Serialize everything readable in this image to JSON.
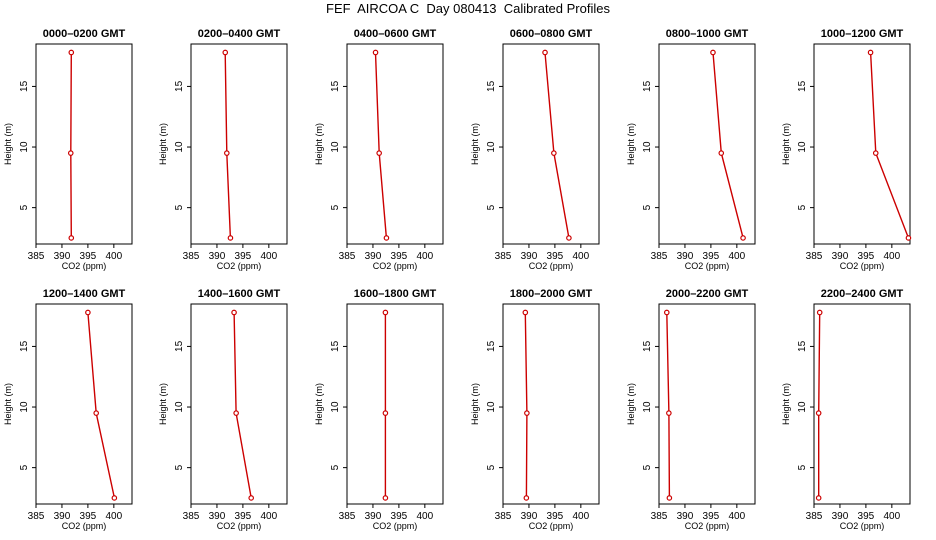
{
  "figure": {
    "title": "FEF  AIRCOA C  Day 080413  Calibrated Profiles"
  },
  "style": {
    "line_color": "#cc0000",
    "axis_color": "#000000"
  },
  "chart_data": [
    {
      "type": "line",
      "title": "0000–0200 GMT",
      "xlabel": "CO2 (ppm)",
      "ylabel": "Height (m)",
      "xlim": [
        385,
        403.5
      ],
      "ylim": [
        2,
        18.5
      ],
      "xticks": [
        385,
        390,
        395,
        400
      ],
      "yticks": [
        5,
        10,
        15
      ],
      "grid": false,
      "series": [
        {
          "x": [
            391.8,
            391.7,
            391.8
          ],
          "y": [
            2.5,
            9.5,
            17.8
          ]
        }
      ]
    },
    {
      "type": "line",
      "title": "0200–0400 GMT",
      "xlabel": "CO2 (ppm)",
      "ylabel": "Height (m)",
      "xlim": [
        385,
        403.5
      ],
      "ylim": [
        2,
        18.5
      ],
      "xticks": [
        385,
        390,
        395,
        400
      ],
      "yticks": [
        5,
        10,
        15
      ],
      "grid": false,
      "series": [
        {
          "x": [
            392.6,
            391.9,
            391.6
          ],
          "y": [
            2.5,
            9.5,
            17.8
          ]
        }
      ]
    },
    {
      "type": "line",
      "title": "0400–0600 GMT",
      "xlabel": "CO2 (ppm)",
      "ylabel": "Height (m)",
      "xlim": [
        385,
        403.5
      ],
      "ylim": [
        2,
        18.5
      ],
      "xticks": [
        385,
        390,
        395,
        400
      ],
      "yticks": [
        5,
        10,
        15
      ],
      "grid": false,
      "series": [
        {
          "x": [
            392.6,
            391.2,
            390.5
          ],
          "y": [
            2.5,
            9.5,
            17.8
          ]
        }
      ]
    },
    {
      "type": "line",
      "title": "0600–0800 GMT",
      "xlabel": "CO2 (ppm)",
      "ylabel": "Height (m)",
      "xlim": [
        385,
        403.5
      ],
      "ylim": [
        2,
        18.5
      ],
      "xticks": [
        385,
        390,
        395,
        400
      ],
      "yticks": [
        5,
        10,
        15
      ],
      "grid": false,
      "series": [
        {
          "x": [
            397.7,
            394.8,
            393.1
          ],
          "y": [
            2.5,
            9.5,
            17.8
          ]
        }
      ]
    },
    {
      "type": "line",
      "title": "0800–1000 GMT",
      "xlabel": "CO2 (ppm)",
      "ylabel": "Height (m)",
      "xlim": [
        385,
        403.5
      ],
      "ylim": [
        2,
        18.5
      ],
      "xticks": [
        385,
        390,
        395,
        400
      ],
      "yticks": [
        5,
        10,
        15
      ],
      "grid": false,
      "series": [
        {
          "x": [
            401.2,
            397.0,
            395.4
          ],
          "y": [
            2.5,
            9.5,
            17.8
          ]
        }
      ]
    },
    {
      "type": "line",
      "title": "1000–1200 GMT",
      "xlabel": "CO2 (ppm)",
      "ylabel": "Height (m)",
      "xlim": [
        385,
        403.5
      ],
      "ylim": [
        2,
        18.5
      ],
      "xticks": [
        385,
        390,
        395,
        400
      ],
      "yticks": [
        5,
        10,
        15
      ],
      "grid": false,
      "series": [
        {
          "x": [
            403.2,
            396.9,
            395.9
          ],
          "y": [
            2.5,
            9.5,
            17.8
          ]
        }
      ]
    },
    {
      "type": "line",
      "title": "1200–1400 GMT",
      "xlabel": "CO2 (ppm)",
      "ylabel": "Height (m)",
      "xlim": [
        385,
        403.5
      ],
      "ylim": [
        2,
        18.5
      ],
      "xticks": [
        385,
        390,
        395,
        400
      ],
      "yticks": [
        5,
        10,
        15
      ],
      "grid": false,
      "series": [
        {
          "x": [
            400.1,
            396.6,
            395.0
          ],
          "y": [
            2.5,
            9.5,
            17.8
          ]
        }
      ]
    },
    {
      "type": "line",
      "title": "1400–1600 GMT",
      "xlabel": "CO2 (ppm)",
      "ylabel": "Height (m)",
      "xlim": [
        385,
        403.5
      ],
      "ylim": [
        2,
        18.5
      ],
      "xticks": [
        385,
        390,
        395,
        400
      ],
      "yticks": [
        5,
        10,
        15
      ],
      "grid": false,
      "series": [
        {
          "x": [
            396.6,
            393.7,
            393.3
          ],
          "y": [
            2.5,
            9.5,
            17.8
          ]
        }
      ]
    },
    {
      "type": "line",
      "title": "1600–1800 GMT",
      "xlabel": "CO2 (ppm)",
      "ylabel": "Height (m)",
      "xlim": [
        385,
        403.5
      ],
      "ylim": [
        2,
        18.5
      ],
      "xticks": [
        385,
        390,
        395,
        400
      ],
      "yticks": [
        5,
        10,
        15
      ],
      "grid": false,
      "series": [
        {
          "x": [
            392.4,
            392.4,
            392.4
          ],
          "y": [
            2.5,
            9.5,
            17.8
          ]
        }
      ]
    },
    {
      "type": "line",
      "title": "1800–2000 GMT",
      "xlabel": "CO2 (ppm)",
      "ylabel": "Height (m)",
      "xlim": [
        385,
        403.5
      ],
      "ylim": [
        2,
        18.5
      ],
      "xticks": [
        385,
        390,
        395,
        400
      ],
      "yticks": [
        5,
        10,
        15
      ],
      "grid": false,
      "series": [
        {
          "x": [
            389.5,
            389.6,
            389.3
          ],
          "y": [
            2.5,
            9.5,
            17.8
          ]
        }
      ]
    },
    {
      "type": "line",
      "title": "2000–2200 GMT",
      "xlabel": "CO2 (ppm)",
      "ylabel": "Height (m)",
      "xlim": [
        385,
        403.5
      ],
      "ylim": [
        2,
        18.5
      ],
      "xticks": [
        385,
        390,
        395,
        400
      ],
      "yticks": [
        5,
        10,
        15
      ],
      "grid": false,
      "series": [
        {
          "x": [
            387.0,
            386.9,
            386.5
          ],
          "y": [
            2.5,
            9.5,
            17.8
          ]
        }
      ]
    },
    {
      "type": "line",
      "title": "2200–2400 GMT",
      "xlabel": "CO2 (ppm)",
      "ylabel": "Height (m)",
      "xlim": [
        385,
        403.5
      ],
      "ylim": [
        2,
        18.5
      ],
      "xticks": [
        385,
        390,
        395,
        400
      ],
      "yticks": [
        5,
        10,
        15
      ],
      "grid": false,
      "series": [
        {
          "x": [
            385.9,
            385.9,
            386.1
          ],
          "y": [
            2.5,
            9.5,
            17.8
          ]
        }
      ]
    }
  ]
}
